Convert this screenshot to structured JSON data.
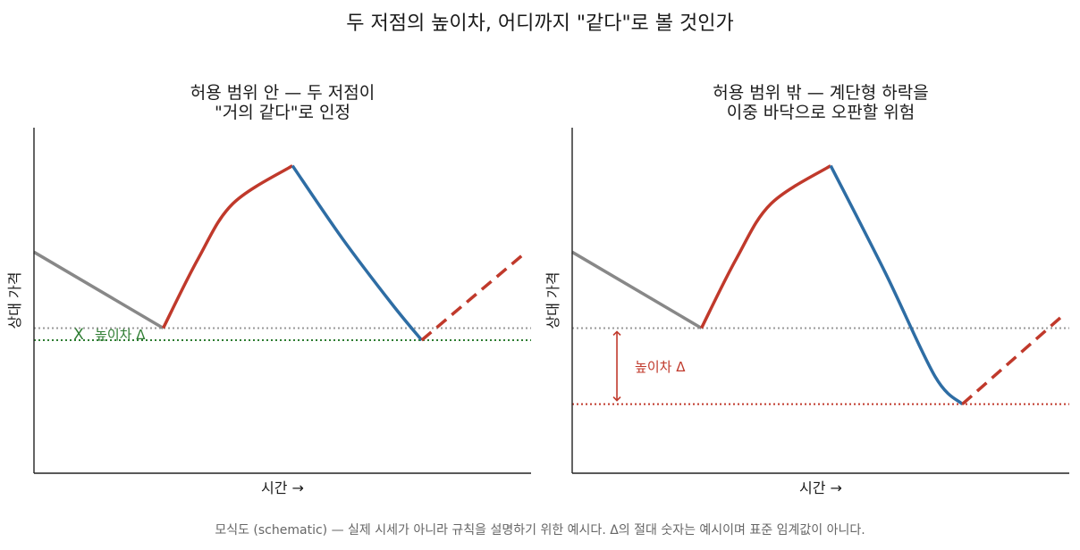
{
  "title": "두 저점의 높이차, 어디까지 \"같다\"로 볼 것인가",
  "footer_note": "모식도 (schematic) — 실제 시세가 아니라 규칙을 설명하기 위한 예시다. Δ의 절대 숫자는 예시이며 표준 임계값이 아니다.",
  "colors": {
    "downtrend": "#888888",
    "rise": "#c0392b",
    "fall": "#2e6da4",
    "projection": "#c0392b",
    "tolerance_ok": "#2e7d32",
    "tolerance_bad": "#c0392b",
    "reference_line": "#999999"
  },
  "chart_data": [
    {
      "type": "line",
      "title_lines": [
        "허용 범위 안 — 두 저점이",
        "\"거의 같다\"로 인정"
      ],
      "xlabel": "시간 →",
      "ylabel": "상대 가격",
      "xlim": [
        0,
        10
      ],
      "ylim": [
        0,
        10
      ],
      "series": [
        {
          "segment": "downtrend",
          "style": "solid",
          "points": [
            [
              0,
              6.4
            ],
            [
              2.6,
              4.2
            ]
          ]
        },
        {
          "segment": "rise",
          "style": "solid",
          "points": [
            [
              2.6,
              4.2
            ],
            [
              3.3,
              6.2
            ],
            [
              4.0,
              7.8
            ],
            [
              5.2,
              8.9
            ]
          ]
        },
        {
          "segment": "fall",
          "style": "solid",
          "points": [
            [
              5.2,
              8.9
            ],
            [
              6.2,
              6.8
            ],
            [
              7.2,
              4.9
            ],
            [
              7.8,
              3.85
            ]
          ]
        },
        {
          "segment": "projection",
          "style": "dashed",
          "points": [
            [
              7.8,
              3.85
            ],
            [
              9.9,
              6.4
            ]
          ]
        }
      ],
      "reference_lines": [
        {
          "y": 4.2,
          "style": "dotted",
          "color_key": "reference_line"
        },
        {
          "y": 3.85,
          "style": "dotted",
          "color_key": "tolerance_ok"
        }
      ],
      "annotation": {
        "marker": "X",
        "text": "높이차 Δ",
        "color_key": "tolerance_ok",
        "x": 0.9,
        "y": 4.03
      }
    },
    {
      "type": "line",
      "title_lines": [
        "허용 범위 밖 — 계단형 하락을",
        "이중 바닥으로 오판할 위험"
      ],
      "xlabel": "시간 →",
      "ylabel": "상대 가격",
      "xlim": [
        0,
        10
      ],
      "ylim": [
        0,
        10
      ],
      "series": [
        {
          "segment": "downtrend",
          "style": "solid",
          "points": [
            [
              0,
              6.4
            ],
            [
              2.6,
              4.2
            ]
          ]
        },
        {
          "segment": "rise",
          "style": "solid",
          "points": [
            [
              2.6,
              4.2
            ],
            [
              3.3,
              6.2
            ],
            [
              4.0,
              7.8
            ],
            [
              5.2,
              8.9
            ]
          ]
        },
        {
          "segment": "fall",
          "style": "solid",
          "points": [
            [
              5.2,
              8.9
            ],
            [
              6.3,
              5.8
            ],
            [
              7.3,
              2.8
            ],
            [
              7.85,
              2.0
            ]
          ]
        },
        {
          "segment": "projection",
          "style": "dashed",
          "points": [
            [
              7.85,
              2.0
            ],
            [
              9.9,
              4.6
            ]
          ]
        }
      ],
      "reference_lines": [
        {
          "y": 4.2,
          "style": "dotted",
          "color_key": "reference_line"
        },
        {
          "y": 2.0,
          "style": "dotted",
          "color_key": "tolerance_bad"
        }
      ],
      "annotation": {
        "marker": "arrow",
        "text": "높이차 Δ",
        "color_key": "tolerance_bad",
        "x": 0.9,
        "y": 3.1
      }
    }
  ]
}
